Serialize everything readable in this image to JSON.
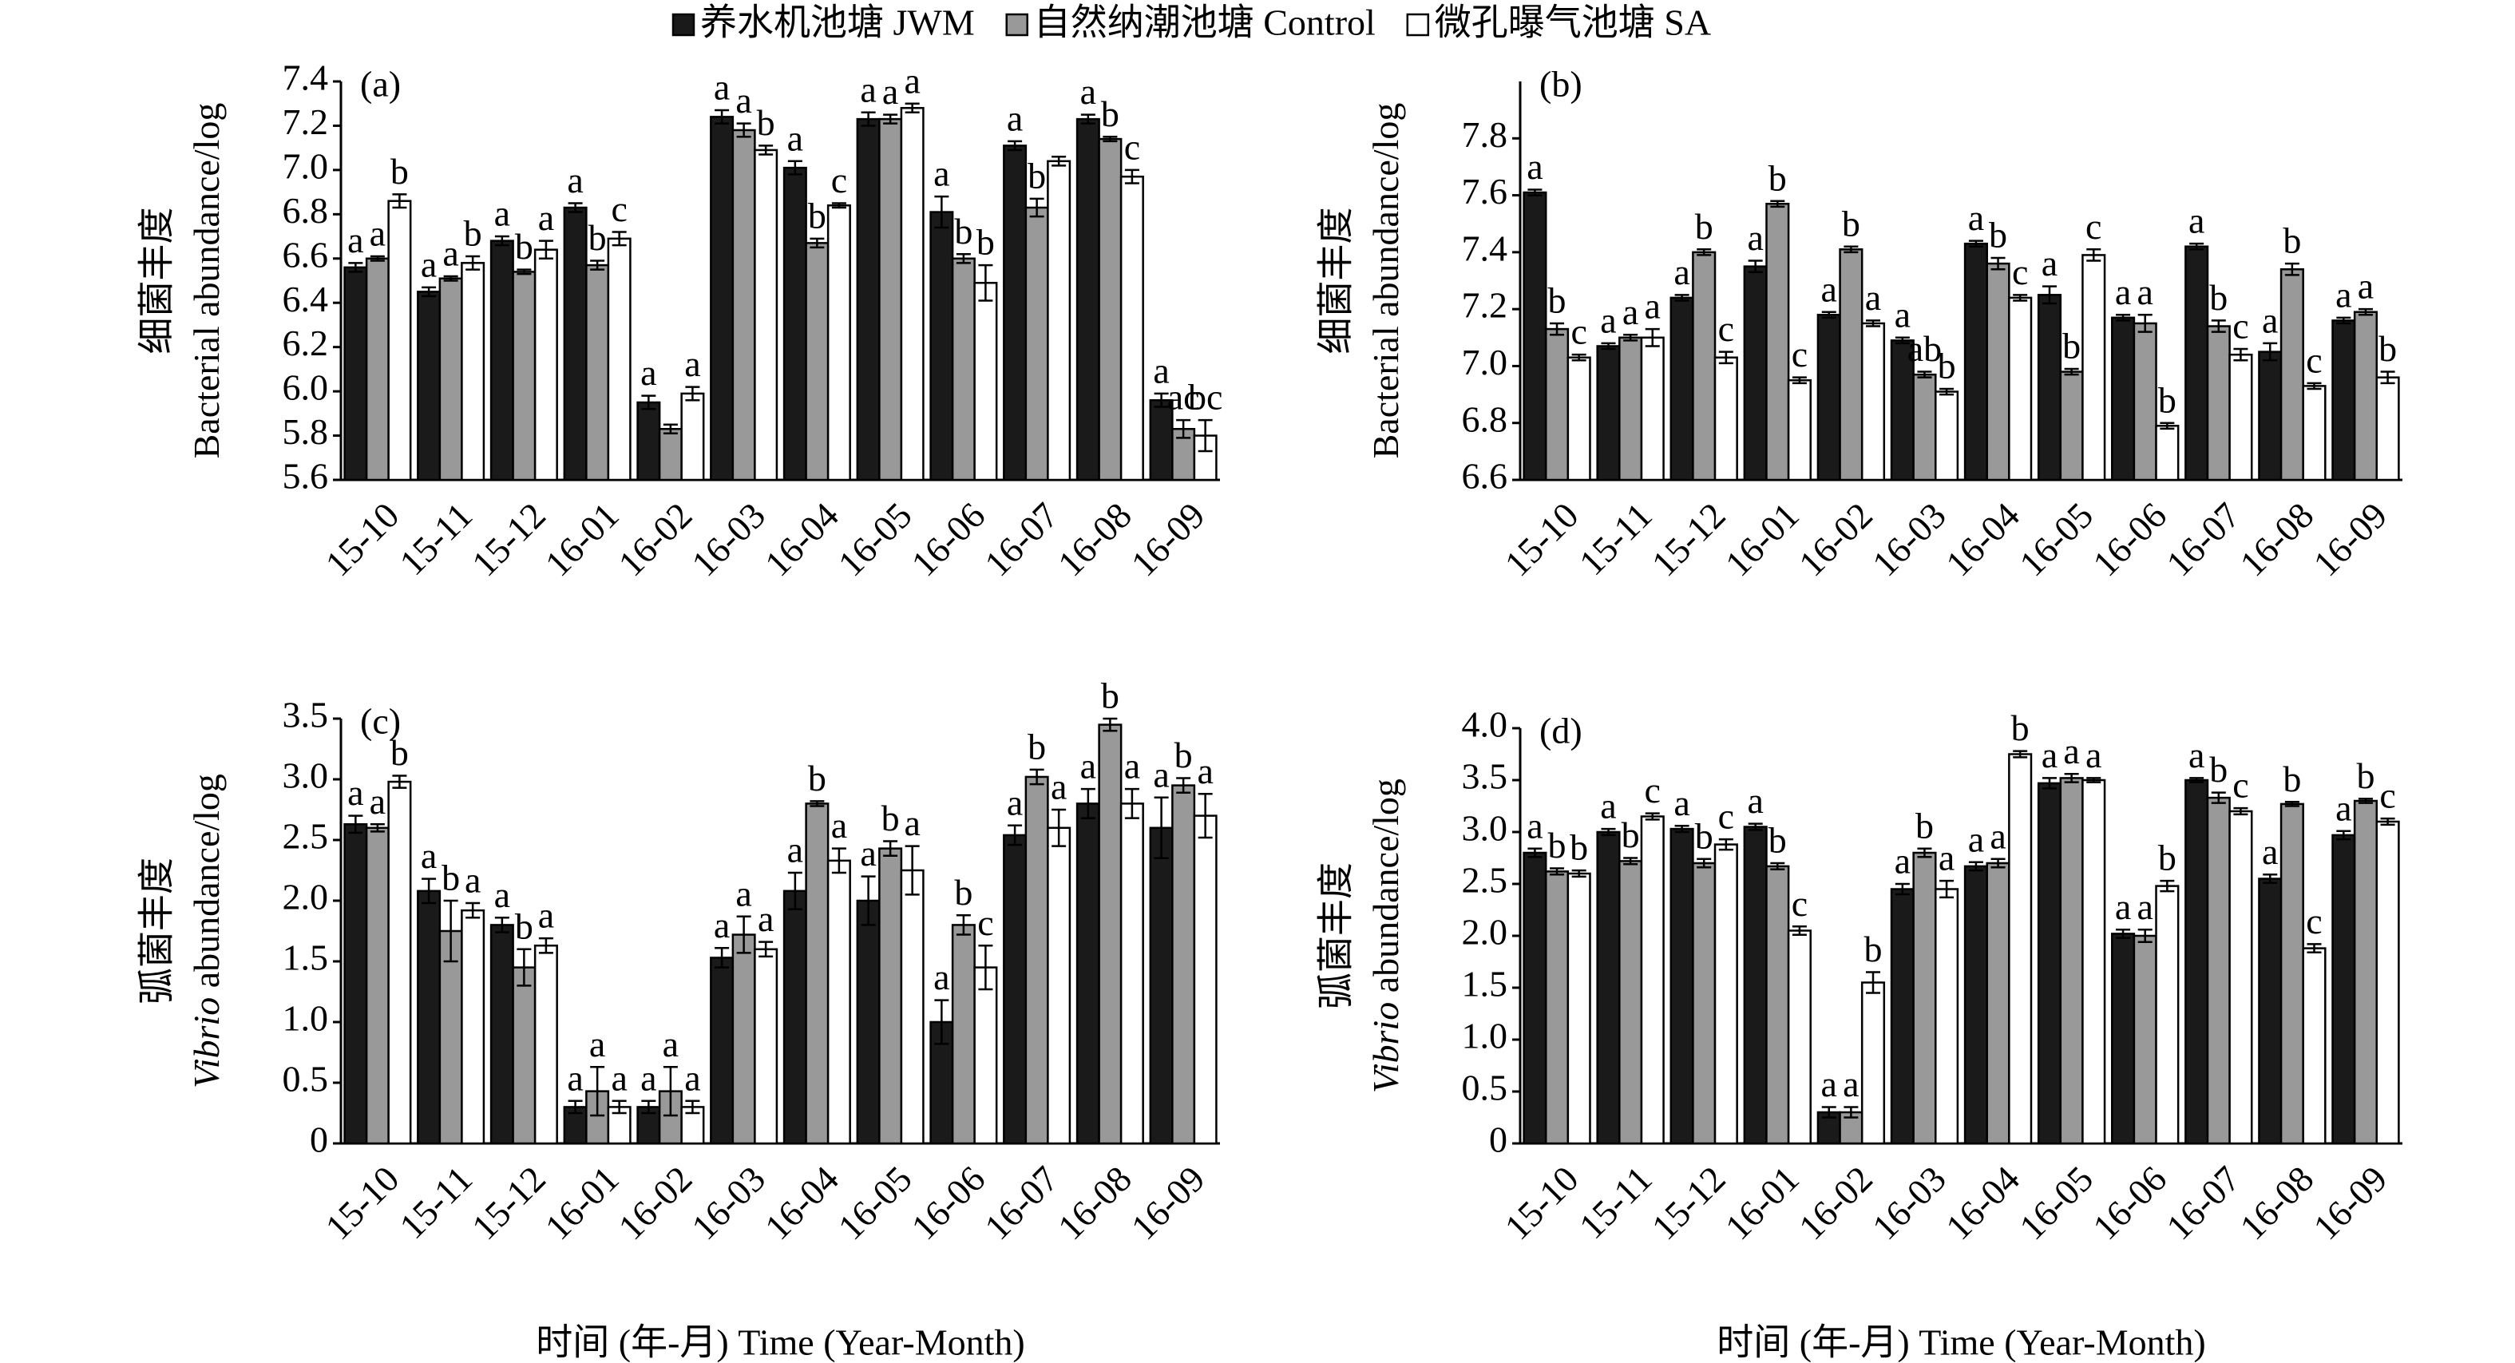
{
  "chart_data": [
    {
      "type": "bar",
      "panel_label": "(a)",
      "ylabel_cn": "细菌丰度",
      "ylabel_en": "Bacterial abundance/log",
      "categories": [
        "15-10",
        "15-11",
        "15-12",
        "16-01",
        "16-02",
        "16-03",
        "16-04",
        "16-05",
        "16-06",
        "16-07",
        "16-08",
        "16-09"
      ],
      "ylim": [
        5.6,
        7.4
      ],
      "yticks": [
        5.6,
        5.8,
        {
          "value": 6,
          "label": "6.0"
        },
        6.2,
        6.4,
        6.6,
        6.8,
        {
          "value": 7,
          "label": "7.0"
        },
        7.2,
        7.4
      ],
      "series": [
        {
          "name": "养水机池塘 JWM",
          "color": "#1a1a1a",
          "values": [
            6.56,
            6.45,
            6.68,
            6.83,
            5.95,
            7.24,
            7.01,
            7.23,
            6.81,
            7.11,
            7.23,
            5.96
          ],
          "errors": [
            0.02,
            0.02,
            0.02,
            0.02,
            0.03,
            0.03,
            0.03,
            0.03,
            0.07,
            0.02,
            0.02,
            0.03
          ],
          "letters": [
            "a",
            "a",
            "a",
            "a",
            "a",
            "a",
            "a",
            "a",
            "a",
            "a",
            "a",
            "a"
          ]
        },
        {
          "name": "自然纳潮池塘 Control",
          "color": "#999999",
          "values": [
            6.6,
            6.51,
            6.54,
            6.57,
            5.83,
            7.18,
            6.67,
            7.23,
            6.6,
            6.83,
            7.14,
            5.83
          ],
          "errors": [
            0.01,
            0.01,
            0.01,
            0.02,
            0.02,
            0.03,
            0.02,
            0.02,
            0.02,
            0.04,
            0.01,
            0.04
          ],
          "letters": [
            "a",
            "a",
            "b",
            "b",
            null,
            "a",
            "b",
            "a",
            "b",
            "b",
            "b",
            "ac"
          ]
        },
        {
          "name": "微孔曝气池塘 SA",
          "color": "#ffffff",
          "values": [
            6.86,
            6.58,
            6.64,
            6.69,
            5.99,
            7.09,
            6.84,
            7.28,
            6.49,
            7.04,
            6.97,
            5.8
          ],
          "errors": [
            0.03,
            0.03,
            0.04,
            0.03,
            0.03,
            0.02,
            0.01,
            0.02,
            0.08,
            0.02,
            0.03,
            0.07
          ],
          "letters": [
            "b",
            "b",
            "a",
            "c",
            "a",
            "b",
            "c",
            "a",
            "b",
            null,
            "c",
            "bc"
          ]
        }
      ]
    },
    {
      "type": "bar",
      "panel_label": "(b)",
      "ylabel_cn": "细菌丰度",
      "ylabel_en": "Bacterial abundance/log",
      "categories": [
        "15-10",
        "15-11",
        "15-12",
        "16-01",
        "16-02",
        "16-03",
        "16-04",
        "16-05",
        "16-06",
        "16-07",
        "16-08",
        "16-09"
      ],
      "ylim": [
        6.6,
        8.0
      ],
      "yticks": [
        6.6,
        6.8,
        {
          "value": 7,
          "label": "7.0"
        },
        7.2,
        7.4,
        7.6,
        7.8
      ],
      "series": [
        {
          "name": "养水机池塘 JWM",
          "color": "#1a1a1a",
          "values": [
            7.61,
            7.07,
            7.24,
            7.35,
            7.18,
            7.09,
            7.43,
            7.25,
            7.17,
            7.42,
            7.05,
            7.16
          ],
          "errors": [
            0.01,
            0.01,
            0.01,
            0.02,
            0.01,
            0.01,
            0.01,
            0.03,
            0.01,
            0.01,
            0.03,
            0.01
          ],
          "letters": [
            "a",
            "a",
            "a",
            "a",
            "a",
            "a",
            "a",
            "a",
            "a",
            "a",
            "a",
            "a"
          ]
        },
        {
          "name": "自然纳潮池塘 Control",
          "color": "#999999",
          "values": [
            7.13,
            7.1,
            7.4,
            7.57,
            7.41,
            6.97,
            7.36,
            6.98,
            7.15,
            7.14,
            7.34,
            7.19
          ],
          "errors": [
            0.02,
            0.01,
            0.01,
            0.01,
            0.01,
            0.01,
            0.02,
            0.01,
            0.03,
            0.02,
            0.02,
            0.01
          ],
          "letters": [
            "b",
            "a",
            "b",
            "b",
            "b",
            "ab",
            "b",
            "b",
            "a",
            "b",
            "b",
            "a"
          ]
        },
        {
          "name": "微孔曝气池塘 SA",
          "color": "#ffffff",
          "values": [
            7.03,
            7.1,
            7.03,
            6.95,
            7.15,
            6.91,
            7.24,
            7.39,
            6.79,
            7.04,
            6.93,
            6.96
          ],
          "errors": [
            0.01,
            0.03,
            0.02,
            0.01,
            0.01,
            0.01,
            0.01,
            0.02,
            0.01,
            0.02,
            0.01,
            0.02
          ],
          "letters": [
            "c",
            "a",
            "c",
            "c",
            "a",
            "b",
            "c",
            "c",
            "b",
            "c",
            "c",
            "b"
          ]
        }
      ]
    },
    {
      "type": "bar",
      "panel_label": "(c)",
      "ylabel_cn": "弧菌丰度",
      "ylabel_en_italic": "Vibrio",
      "ylabel_en": " abundance/log",
      "xlabel": "时间 (年-月) Time (Year-Month)",
      "categories": [
        "15-10",
        "15-11",
        "15-12",
        "16-01",
        "16-02",
        "16-03",
        "16-04",
        "16-05",
        "16-06",
        "16-07",
        "16-08",
        "16-09"
      ],
      "ylim": [
        0,
        3.5
      ],
      "yticks": [
        0,
        0.5,
        {
          "value": 1,
          "label": "1.0"
        },
        1.5,
        {
          "value": 2,
          "label": "2.0"
        },
        2.5,
        {
          "value": 3,
          "label": "3.0"
        },
        3.5
      ],
      "series": [
        {
          "name": "养水机池塘 JWM",
          "color": "#1a1a1a",
          "values": [
            2.63,
            2.08,
            1.8,
            0.3,
            0.3,
            1.53,
            2.08,
            2.0,
            1.0,
            2.54,
            2.8,
            2.6
          ],
          "errors": [
            0.07,
            0.1,
            0.06,
            0.05,
            0.05,
            0.08,
            0.15,
            0.2,
            0.18,
            0.08,
            0.12,
            0.25
          ],
          "letters": [
            "a",
            "a",
            "a",
            "a",
            "a",
            "a",
            "a",
            "a",
            "a",
            "a",
            "a",
            "a"
          ]
        },
        {
          "name": "自然纳潮池塘 Control",
          "color": "#999999",
          "values": [
            2.6,
            1.75,
            1.45,
            0.43,
            0.43,
            1.72,
            2.8,
            2.43,
            1.8,
            3.02,
            3.45,
            2.95
          ],
          "errors": [
            0.03,
            0.25,
            0.15,
            0.2,
            0.2,
            0.15,
            0.02,
            0.06,
            0.08,
            0.06,
            0.05,
            0.06
          ],
          "letters": [
            "a",
            "b",
            "b",
            "a",
            "a",
            "a",
            "b",
            "b",
            "b",
            "b",
            "b",
            "b"
          ]
        },
        {
          "name": "微孔曝气池塘 SA",
          "color": "#ffffff",
          "values": [
            2.98,
            1.92,
            1.63,
            0.3,
            0.3,
            1.6,
            2.33,
            2.25,
            1.45,
            2.6,
            2.8,
            2.7
          ],
          "errors": [
            0.05,
            0.06,
            0.06,
            0.05,
            0.05,
            0.06,
            0.1,
            0.2,
            0.18,
            0.15,
            0.12,
            0.18
          ],
          "letters": [
            "b",
            "a",
            "a",
            "a",
            "a",
            "a",
            "a",
            "a",
            "c",
            "a",
            "a",
            "a"
          ]
        }
      ]
    },
    {
      "type": "bar",
      "panel_label": "(d)",
      "ylabel_cn": "弧菌丰度",
      "ylabel_en_italic": "Vibrio",
      "ylabel_en": " abundance/log",
      "xlabel": "时间 (年-月) Time (Year-Month)",
      "categories": [
        "15-10",
        "15-11",
        "15-12",
        "16-01",
        "16-02",
        "16-03",
        "16-04",
        "16-05",
        "16-06",
        "16-07",
        "16-08",
        "16-09"
      ],
      "ylim": [
        0,
        4.0
      ],
      "yticks": [
        0,
        0.5,
        {
          "value": 1,
          "label": "1.0"
        },
        1.5,
        {
          "value": 2,
          "label": "2.0"
        },
        2.5,
        {
          "value": 3,
          "label": "3.0"
        },
        3.5,
        {
          "value": 4,
          "label": "4.0"
        }
      ],
      "series": [
        {
          "name": "养水机池塘 JWM",
          "color": "#1a1a1a",
          "values": [
            2.8,
            3.0,
            3.03,
            3.05,
            0.3,
            2.45,
            2.67,
            3.47,
            2.02,
            3.5,
            2.55,
            2.97
          ],
          "errors": [
            0.04,
            0.03,
            0.03,
            0.03,
            0.05,
            0.05,
            0.04,
            0.05,
            0.04,
            0.02,
            0.04,
            0.04
          ],
          "letters": [
            "a",
            "a",
            "a",
            "a",
            "a",
            "a",
            "a",
            "a",
            "a",
            "a",
            "a",
            "a"
          ]
        },
        {
          "name": "自然纳潮池塘 Control",
          "color": "#999999",
          "values": [
            2.62,
            2.72,
            2.7,
            2.67,
            0.3,
            2.8,
            2.7,
            3.52,
            2.0,
            3.33,
            3.27,
            3.3
          ],
          "errors": [
            0.03,
            0.03,
            0.04,
            0.03,
            0.05,
            0.04,
            0.04,
            0.04,
            0.06,
            0.05,
            0.02,
            0.02
          ],
          "letters": [
            "b",
            "b",
            "b",
            "b",
            "a",
            "b",
            "a",
            "a",
            "a",
            "b",
            "b",
            "b"
          ]
        },
        {
          "name": "微孔曝气池塘 SA",
          "color": "#ffffff",
          "values": [
            2.6,
            3.15,
            2.88,
            2.05,
            1.55,
            2.45,
            3.75,
            3.5,
            2.48,
            3.2,
            1.88,
            3.1
          ],
          "errors": [
            0.03,
            0.03,
            0.05,
            0.04,
            0.1,
            0.08,
            0.03,
            0.02,
            0.05,
            0.03,
            0.04,
            0.03
          ],
          "letters": [
            "b",
            "c",
            "c",
            "c",
            "b",
            "a",
            "b",
            "a",
            "b",
            "c",
            "c",
            "c"
          ]
        }
      ]
    }
  ]
}
